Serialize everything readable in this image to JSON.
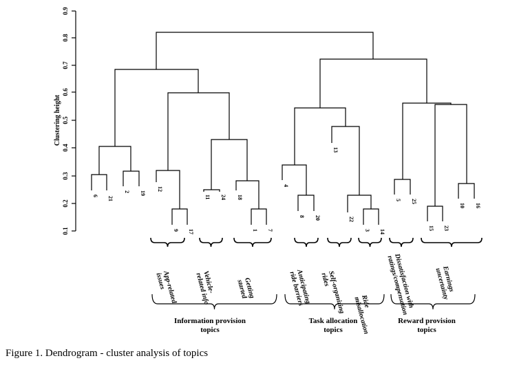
{
  "caption": "Figure 1. Dendrogram - cluster analysis of topics",
  "y_axis": {
    "label": "Clustering height",
    "ticks": [
      "0.1",
      "0.2",
      "0.3",
      "0.4",
      "0.5",
      "0.6",
      "0.7",
      "0.8",
      "0.9"
    ]
  },
  "leaves": [
    "6",
    "21",
    "2",
    "19",
    "12",
    "9",
    "17",
    "11",
    "24",
    "18",
    "1",
    "7",
    "4",
    "8",
    "20",
    "13",
    "22",
    "3",
    "14",
    "5",
    "25",
    "15",
    "23",
    "10",
    "16"
  ],
  "subgroups": [
    {
      "label": "App-related issues",
      "lines": [
        "App-related",
        "issues"
      ]
    },
    {
      "label": "Vehicle-related info",
      "lines": [
        "Vehicle-",
        "related info"
      ]
    },
    {
      "label": "Getting started",
      "lines": [
        "Getting",
        "started"
      ]
    },
    {
      "label": "Anticipating ride barriers",
      "lines": [
        "Anticipating",
        "ride barriers"
      ]
    },
    {
      "label": "Self-organizing rides",
      "lines": [
        "Self-organizing",
        "rides"
      ]
    },
    {
      "label": "Ride misallocation",
      "lines": [
        "Ride",
        "misallocation"
      ]
    },
    {
      "label": "Dissatisfaction with ratings/compensation",
      "lines": [
        "Dissatisfaction with",
        "ratings/compensation"
      ]
    },
    {
      "label": "Earnings uncertainty",
      "lines": [
        "Earnings",
        "uncertainty"
      ]
    }
  ],
  "groups": [
    {
      "lines": [
        "Information provision",
        "topics"
      ]
    },
    {
      "lines": [
        "Task allocation",
        "topics"
      ]
    },
    {
      "lines": [
        "Reward provision",
        "topics"
      ]
    }
  ]
}
